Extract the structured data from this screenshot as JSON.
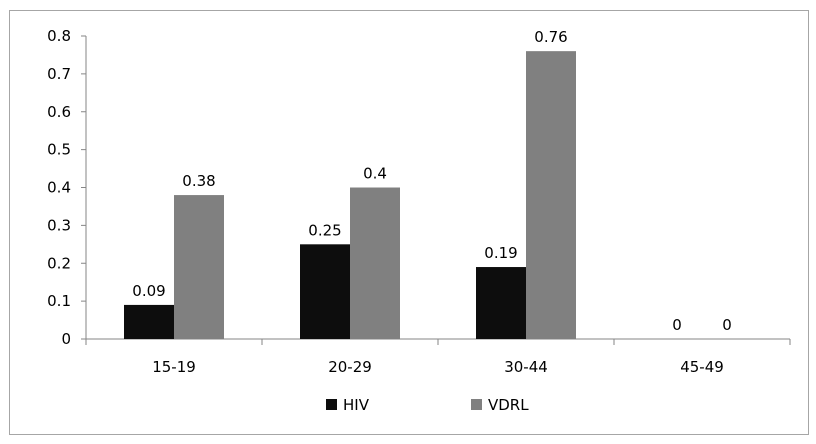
{
  "chart_data": {
    "type": "bar",
    "categories": [
      "15-19",
      "20-29",
      "30-44",
      "45-49"
    ],
    "series": [
      {
        "name": "HIV",
        "values": [
          0.09,
          0.25,
          0.19,
          0
        ],
        "labels": [
          "0.09",
          "0.25",
          "0.19",
          "0"
        ],
        "color": "#0d0d0d"
      },
      {
        "name": "VDRL",
        "values": [
          0.38,
          0.4,
          0.76,
          0
        ],
        "labels": [
          "0.38",
          "0.4",
          "0.76",
          "0"
        ],
        "color": "#808080"
      }
    ],
    "ylim": [
      0,
      0.8
    ],
    "yticks": [
      "0",
      "0.1",
      "0.2",
      "0.3",
      "0.4",
      "0.5",
      "0.6",
      "0.7",
      "0.8"
    ],
    "grid": false,
    "legend_position": "bottom"
  }
}
